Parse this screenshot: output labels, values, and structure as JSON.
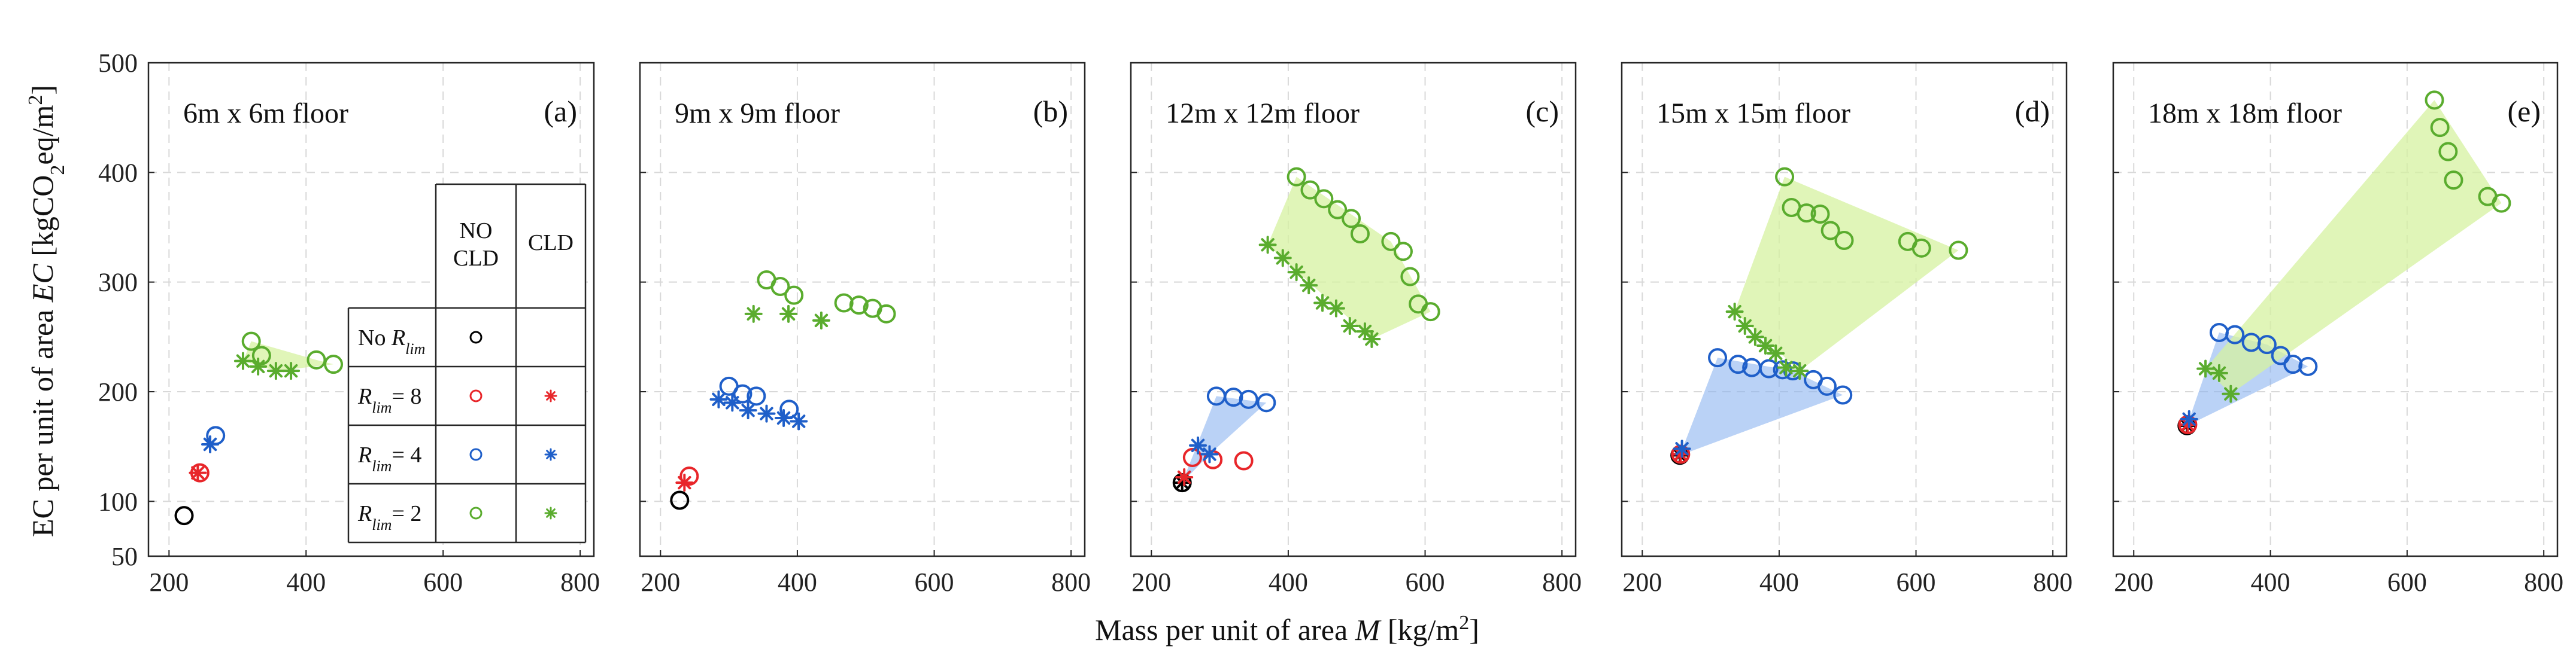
{
  "chart_data": {
    "type": "scatter",
    "xlabel": "Mass per unit of area M [kg/m2]",
    "ylabel": "EC per unit of area EC [kgCO2eq/m2]",
    "xlabel_parts": [
      "Mass per unit of area ",
      "M",
      " [kg/m",
      "2",
      "]"
    ],
    "ylabel_parts": [
      "EC per unit of area ",
      "EC",
      " [kgCO",
      "2",
      "eq/m",
      "2",
      "]"
    ],
    "xlim": [
      170,
      820
    ],
    "ylim": [
      50,
      500
    ],
    "xticks": [
      "200",
      "400",
      "600",
      "800"
    ],
    "xtick_values": [
      200,
      400,
      600,
      800
    ],
    "yticks": [
      "50",
      "100",
      "200",
      "300",
      "400",
      "500"
    ],
    "ytick_values": [
      50,
      100,
      200,
      300,
      400,
      500
    ],
    "grid": true,
    "colors": {
      "none": "#000000",
      "r8": "#e8262a",
      "r4": "#1f5fc9",
      "r2": "#5aac2e",
      "r4_fill": "#8cb4f0",
      "r2_fill": "#d6f2a0"
    },
    "legend": {
      "columns": [
        "NO CLD",
        "CLD"
      ],
      "column_lines": [
        [
          "NO",
          "CLD"
        ],
        [
          "CLD"
        ]
      ],
      "rows": [
        {
          "label": "No R_lim",
          "parts": [
            "No ",
            "R",
            "lim",
            ""
          ],
          "series": "none"
        },
        {
          "label": "R_lim = 8",
          "parts": [
            "",
            "R",
            "lim",
            "= 8"
          ],
          "series": "r8"
        },
        {
          "label": "R_lim = 4",
          "parts": [
            "",
            "R",
            "lim",
            "= 4"
          ],
          "series": "r4"
        },
        {
          "label": "R_lim = 2",
          "parts": [
            "",
            "R",
            "lim",
            "= 2"
          ],
          "series": "r2"
        }
      ]
    },
    "panels": [
      {
        "title": "6m x 6m floor",
        "tag": "(a)",
        "series": {
          "none": {
            "nocld": [
              [
                222,
                87
              ]
            ],
            "cld": []
          },
          "r8": {
            "nocld": [
              [
                245,
                126
              ]
            ],
            "cld": [
              [
                242,
                126
              ]
            ]
          },
          "r4": {
            "nocld": [
              [
                268,
                160
              ]
            ],
            "cld": [
              [
                260,
                152
              ]
            ]
          },
          "r2": {
            "nocld": [
              [
                320,
                246
              ],
              [
                335,
                233
              ],
              [
                415,
                229
              ],
              [
                440,
                225
              ]
            ],
            "cld": [
              [
                308,
                228
              ],
              [
                330,
                223
              ],
              [
                356,
                219
              ],
              [
                378,
                219
              ]
            ]
          }
        },
        "fills": [
          {
            "series": "r2",
            "polygon": [
              [
                308,
                228
              ],
              [
                320,
                246
              ],
              [
                415,
                229
              ],
              [
                440,
                225
              ],
              [
                356,
                219
              ]
            ]
          }
        ]
      },
      {
        "title": "9m x 9m floor",
        "tag": "(b)",
        "series": {
          "none": {
            "nocld": [
              [
                228,
                101
              ]
            ],
            "cld": []
          },
          "r8": {
            "nocld": [
              [
                242,
                123
              ]
            ],
            "cld": [
              [
                235,
                117
              ]
            ]
          },
          "r4": {
            "nocld": [
              [
                300,
                205
              ],
              [
                320,
                198
              ],
              [
                340,
                196
              ],
              [
                388,
                184
              ]
            ],
            "cld": [
              [
                285,
                193
              ],
              [
                305,
                190
              ],
              [
                328,
                183
              ],
              [
                355,
                180
              ],
              [
                380,
                176
              ],
              [
                402,
                173
              ]
            ]
          },
          "r2": {
            "nocld": [
              [
                355,
                302
              ],
              [
                375,
                296
              ],
              [
                395,
                288
              ],
              [
                468,
                281
              ],
              [
                490,
                279
              ],
              [
                510,
                276
              ],
              [
                530,
                271
              ]
            ],
            "cld": [
              [
                336,
                271
              ],
              [
                387,
                271
              ],
              [
                435,
                265
              ]
            ]
          }
        },
        "fills": []
      },
      {
        "title": "12m x 12m floor",
        "tag": "(c)",
        "series": {
          "none": {
            "nocld": [
              [
                245,
                117
              ]
            ],
            "cld": [
              [
                245,
                117
              ]
            ]
          },
          "r8": {
            "nocld": [
              [
                260,
                140
              ],
              [
                290,
                138
              ],
              [
                335,
                137
              ]
            ],
            "cld": [
              [
                248,
                122
              ]
            ]
          },
          "r4": {
            "nocld": [
              [
                295,
                196
              ],
              [
                320,
                195
              ],
              [
                342,
                193
              ],
              [
                368,
                190
              ]
            ],
            "cld": [
              [
                268,
                151
              ],
              [
                285,
                143
              ]
            ]
          },
          "r2": {
            "nocld": [
              [
                412,
                396
              ],
              [
                432,
                384
              ],
              [
                452,
                376
              ],
              [
                472,
                366
              ],
              [
                492,
                358
              ],
              [
                505,
                344
              ],
              [
                550,
                337
              ],
              [
                568,
                328
              ],
              [
                578,
                305
              ],
              [
                590,
                280
              ],
              [
                608,
                273
              ]
            ],
            "cld": [
              [
                370,
                334
              ],
              [
                392,
                322
              ],
              [
                412,
                309
              ],
              [
                430,
                297
              ],
              [
                450,
                281
              ],
              [
                470,
                276
              ],
              [
                490,
                260
              ],
              [
                512,
                255
              ],
              [
                522,
                248
              ]
            ]
          }
        },
        "fills": [
          {
            "series": "r4",
            "polygon": [
              [
                245,
                117
              ],
              [
                295,
                196
              ],
              [
                368,
                190
              ],
              [
                285,
                143
              ]
            ]
          },
          {
            "series": "r2",
            "polygon": [
              [
                370,
                334
              ],
              [
                412,
                396
              ],
              [
                550,
                337
              ],
              [
                608,
                273
              ],
              [
                522,
                248
              ]
            ]
          }
        ]
      },
      {
        "title": "15m x 15m floor",
        "tag": "(d)",
        "series": {
          "none": {
            "nocld": [
              [
                255,
                142
              ]
            ],
            "cld": [
              [
                255,
                142
              ]
            ]
          },
          "r8": {
            "nocld": [
              [
                256,
                143
              ]
            ],
            "cld": [
              [
                256,
                143
              ]
            ]
          },
          "r4": {
            "nocld": [
              [
                310,
                231
              ],
              [
                340,
                225
              ],
              [
                360,
                222
              ],
              [
                385,
                221
              ],
              [
                405,
                220
              ],
              [
                420,
                219
              ],
              [
                450,
                211
              ],
              [
                470,
                205
              ],
              [
                493,
                197
              ]
            ],
            "cld": [
              [
                258,
                148
              ]
            ]
          },
          "r2": {
            "nocld": [
              [
                408,
                396
              ],
              [
                418,
                368
              ],
              [
                440,
                363
              ],
              [
                460,
                362
              ],
              [
                475,
                347
              ],
              [
                495,
                338
              ],
              [
                588,
                337
              ],
              [
                608,
                331
              ],
              [
                662,
                329
              ]
            ],
            "cld": [
              [
                335,
                273
              ],
              [
                350,
                260
              ],
              [
                365,
                250
              ],
              [
                380,
                242
              ],
              [
                395,
                235
              ],
              [
                410,
                222
              ],
              [
                430,
                219
              ]
            ]
          }
        },
        "fills": [
          {
            "series": "r4",
            "polygon": [
              [
                255,
                142
              ],
              [
                310,
                231
              ],
              [
                420,
                219
              ],
              [
                493,
                197
              ]
            ]
          },
          {
            "series": "r2",
            "polygon": [
              [
                335,
                273
              ],
              [
                408,
                396
              ],
              [
                662,
                329
              ],
              [
                430,
                219
              ]
            ]
          }
        ]
      },
      {
        "title": "18m x 18m floor",
        "tag": "(e)",
        "series": {
          "none": {
            "nocld": [
              [
                278,
                169
              ]
            ],
            "cld": [
              [
                278,
                169
              ]
            ]
          },
          "r8": {
            "nocld": [
              [
                279,
                170
              ]
            ],
            "cld": [
              [
                279,
                170
              ]
            ]
          },
          "r4": {
            "nocld": [
              [
                325,
                254
              ],
              [
                348,
                252
              ],
              [
                372,
                245
              ],
              [
                395,
                243
              ],
              [
                415,
                233
              ],
              [
                433,
                225
              ],
              [
                455,
                223
              ]
            ],
            "cld": [
              [
                281,
                175
              ]
            ]
          },
          "r2": {
            "nocld": [
              [
                640,
                466
              ],
              [
                648,
                441
              ],
              [
                660,
                419
              ],
              [
                668,
                393
              ],
              [
                718,
                378
              ],
              [
                738,
                372
              ]
            ],
            "cld": [
              [
                305,
                221
              ],
              [
                325,
                217
              ],
              [
                342,
                198
              ]
            ]
          }
        },
        "fills": [
          {
            "series": "r4",
            "polygon": [
              [
                278,
                169
              ],
              [
                325,
                254
              ],
              [
                395,
                243
              ],
              [
                455,
                223
              ]
            ]
          },
          {
            "series": "r2",
            "polygon": [
              [
                305,
                221
              ],
              [
                640,
                466
              ],
              [
                738,
                372
              ],
              [
                342,
                198
              ]
            ]
          }
        ]
      }
    ]
  }
}
